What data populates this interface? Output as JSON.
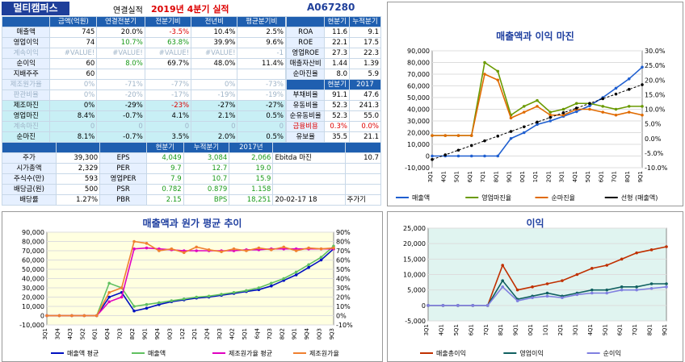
{
  "header": {
    "company": "멀티캠퍼스",
    "report_type": "연결실적",
    "period_year": "2019년",
    "period_q": "4분기 실적",
    "code": "A067280"
  },
  "main_table": {
    "columns": [
      "금액(억원)",
      "연결전분기",
      "전분기비",
      "전년비",
      "평균분기비"
    ],
    "rows": [
      {
        "label": "매출액",
        "vals": [
          "745",
          "20.0%",
          "-3.5%",
          "10.4%",
          "2.5%"
        ]
      },
      {
        "label": "영업이익",
        "vals": [
          "74",
          "10.7%",
          "63.8%",
          "39.9%",
          "9.6%"
        ]
      },
      {
        "label": "계속이익",
        "vals": [
          "#VALUE!",
          "#VALUE!",
          "#VALUE!",
          "#VALUE!",
          "-1"
        ]
      },
      {
        "label": "순이익",
        "vals": [
          "60",
          "8.0%",
          "69.7%",
          "48.0%",
          "11.4%"
        ]
      },
      {
        "label": "지배주주",
        "vals": [
          "60",
          "",
          "",
          "",
          ""
        ]
      },
      {
        "label": "제조원가율",
        "vals": [
          "0%",
          "-71%",
          "-77%",
          "0%",
          "-73%"
        ]
      },
      {
        "label": "판관비율",
        "vals": [
          "0%",
          "-20%",
          "-17%",
          "-19%",
          "-19%"
        ]
      },
      {
        "label": "제조마진",
        "vals": [
          "0%",
          "-29%",
          "-23%",
          "-27%",
          "-27%"
        ]
      },
      {
        "label": "영업마진",
        "vals": [
          "8.4%",
          "-0.7%",
          "4.1%",
          "2.1%",
          "0.5%"
        ]
      },
      {
        "label": "계속마진",
        "vals": [
          "0",
          "0",
          "0",
          "0",
          "0"
        ]
      },
      {
        "label": "순마진",
        "vals": [
          "8.1%",
          "-0.7%",
          "3.5%",
          "2.0%",
          "0.5%"
        ]
      }
    ]
  },
  "ratio_table": {
    "head": [
      "현분기",
      "누적분기"
    ],
    "rows": [
      {
        "label": "ROA",
        "vals": [
          "11.6",
          "9.1"
        ]
      },
      {
        "label": "ROE",
        "vals": [
          "22.1",
          "17.5"
        ]
      },
      {
        "label": "영업ROE",
        "vals": [
          "27.3",
          "22.3"
        ]
      },
      {
        "label": "매출자산비",
        "vals": [
          "1.44",
          "1.39"
        ]
      },
      {
        "label": "순마진율",
        "vals": [
          "8.0",
          "5.9"
        ]
      }
    ],
    "head2": [
      "현분기",
      "2017"
    ],
    "rows2": [
      {
        "label": "부채비율",
        "vals": [
          "91.1",
          "47.6"
        ]
      },
      {
        "label": "유동비율",
        "vals": [
          "52.3",
          "241.3"
        ]
      },
      {
        "label": "순유동비율",
        "vals": [
          "52.3",
          "55.0"
        ]
      },
      {
        "label": "금융비용",
        "vals": [
          "0.3%",
          "0.0%"
        ]
      },
      {
        "label": "유보율",
        "vals": [
          "35.5",
          "21.1"
        ]
      }
    ]
  },
  "valuation": {
    "head": [
      "현분기",
      "누적분기",
      "2017년"
    ],
    "left": [
      {
        "label": "주가",
        "val": "39,300"
      },
      {
        "label": "시가총액",
        "val": "2,329"
      },
      {
        "label": "주식수(만)",
        "val": "593"
      },
      {
        "label": "배당금(원)",
        "val": "500"
      },
      {
        "label": "배당률",
        "val": "1.27%"
      }
    ],
    "rows": [
      {
        "label": "EPS",
        "vals": [
          "4,049",
          "3,084",
          "2,066"
        ]
      },
      {
        "label": "PER",
        "vals": [
          "9.7",
          "12.7",
          "19.0"
        ]
      },
      {
        "label": "영업PER",
        "vals": [
          "7.9",
          "10.7",
          "15.9"
        ]
      },
      {
        "label": "PSR",
        "vals": [
          "0.782",
          "0.879",
          "1.158"
        ]
      },
      {
        "label": "PBR",
        "vals": [
          "2.15",
          "BPS",
          "18,251"
        ]
      }
    ],
    "ebitda_label": "Ebitda 마진",
    "ebitda": "10.7",
    "date": "20-02-17 18",
    "note": "주가기"
  },
  "chart_data": [
    {
      "type": "line",
      "title": "매출액과 이익 마진",
      "x": [
        "3Q1",
        "4Q1",
        "5Q1",
        "6Q1",
        "7Q1",
        "8Q1",
        "9Q1",
        "0Q1",
        "1Q1",
        "2Q1",
        "3Q1",
        "4Q1",
        "5Q1",
        "6Q1",
        "7Q1",
        "8Q1",
        "9Q1"
      ],
      "ylim": [
        -10000,
        90000
      ],
      "y2lim": [
        -10,
        30
      ],
      "series": [
        {
          "name": "매출액",
          "axis": "left",
          "color": "#1f5fd0",
          "values": [
            0,
            0,
            0,
            0,
            0,
            0,
            15000,
            20000,
            27000,
            30000,
            34000,
            38000,
            43000,
            50000,
            58000,
            66000,
            76000
          ]
        },
        {
          "name": "영업마진율",
          "axis": "right",
          "color": "#6a9a00",
          "values": [
            1,
            1,
            1,
            1,
            26,
            23,
            8,
            11,
            13,
            9,
            10,
            12,
            12,
            11,
            10,
            11,
            11
          ]
        },
        {
          "name": "순마진율",
          "axis": "right",
          "color": "#e06a00",
          "values": [
            1,
            1,
            1,
            1,
            22,
            20,
            7,
            9,
            11,
            8,
            8,
            10,
            10,
            9,
            8,
            9,
            8
          ]
        },
        {
          "name": "선형 (매출액)",
          "axis": "left",
          "color": "#000",
          "values": [
            -3000,
            1000,
            5000,
            9000,
            13000,
            17000,
            21000,
            25000,
            29000,
            33000,
            37000,
            41000,
            45000,
            49000,
            53000,
            57000,
            61000
          ]
        }
      ]
    },
    {
      "type": "line",
      "title": "매출액과 원가 평균 추이",
      "x": [
        "3Q1",
        "3Q4",
        "4Q3",
        "5Q2",
        "6Q1",
        "6Q4",
        "7Q3",
        "8Q2",
        "9Q1",
        "9Q4",
        "0Q3",
        "1Q2",
        "2Q1",
        "2Q4",
        "3Q3",
        "4Q2",
        "5Q1",
        "6q4",
        "7Q3",
        "8Q2",
        "9Q1",
        "9Q4",
        "0Q3",
        "9Q3"
      ],
      "ylim": [
        -10000,
        90000
      ],
      "y2lim": [
        -10,
        90
      ],
      "series": [
        {
          "name": "매출액 평균",
          "axis": "left",
          "color": "#0010c0",
          "values": [
            0,
            0,
            0,
            0,
            0,
            20000,
            25000,
            5000,
            8000,
            12000,
            15000,
            17000,
            19000,
            20000,
            22000,
            24000,
            26000,
            28000,
            32000,
            38000,
            44000,
            52000,
            60000,
            72000
          ]
        },
        {
          "name": "매출액",
          "axis": "left",
          "color": "#60c060",
          "values": [
            0,
            0,
            0,
            0,
            0,
            35000,
            30000,
            10000,
            12000,
            14000,
            16000,
            18000,
            20000,
            21000,
            23000,
            25000,
            27000,
            30000,
            35000,
            40000,
            47000,
            55000,
            63000,
            75000
          ]
        },
        {
          "name": "제조원가율 평균",
          "axis": "right",
          "color": "#e000c0",
          "values": [
            0,
            0,
            0,
            0,
            0,
            15,
            20,
            72,
            73,
            72,
            71,
            70,
            70,
            70,
            70,
            70,
            71,
            71,
            72,
            72,
            72,
            72,
            72,
            72
          ]
        },
        {
          "name": "제조원가율",
          "axis": "right",
          "color": "#f08030",
          "values": [
            0,
            0,
            0,
            0,
            0,
            25,
            30,
            80,
            78,
            70,
            72,
            68,
            74,
            71,
            69,
            72,
            70,
            73,
            71,
            74,
            70,
            73,
            72,
            73
          ]
        }
      ]
    },
    {
      "type": "line",
      "title": "이익",
      "x": [
        "3Q1",
        "4Q1",
        "5Q1",
        "6Q1",
        "7Q1",
        "8Q1",
        "9Q1",
        "0Q1",
        "1Q1",
        "2Q1",
        "3Q1",
        "4Q1",
        "5Q1",
        "6Q1",
        "7Q1",
        "8Q1",
        "9Q1"
      ],
      "ylim": [
        -5000,
        25000
      ],
      "series": [
        {
          "name": "매출총이익",
          "color": "#c03000",
          "values": [
            0,
            0,
            0,
            0,
            0,
            13000,
            5000,
            6000,
            7000,
            8000,
            10000,
            12000,
            13000,
            15000,
            17000,
            18000,
            19000
          ]
        },
        {
          "name": "영업이익",
          "color": "#106060",
          "values": [
            0,
            0,
            0,
            0,
            0,
            8000,
            2000,
            3000,
            4000,
            3000,
            4000,
            5000,
            5000,
            6000,
            6000,
            7000,
            7000
          ]
        },
        {
          "name": "순이익",
          "color": "#8080e0",
          "values": [
            0,
            0,
            0,
            0,
            0,
            6000,
            1500,
            2500,
            3000,
            2500,
            3500,
            4000,
            4000,
            5000,
            5000,
            5500,
            6000
          ]
        }
      ]
    }
  ]
}
